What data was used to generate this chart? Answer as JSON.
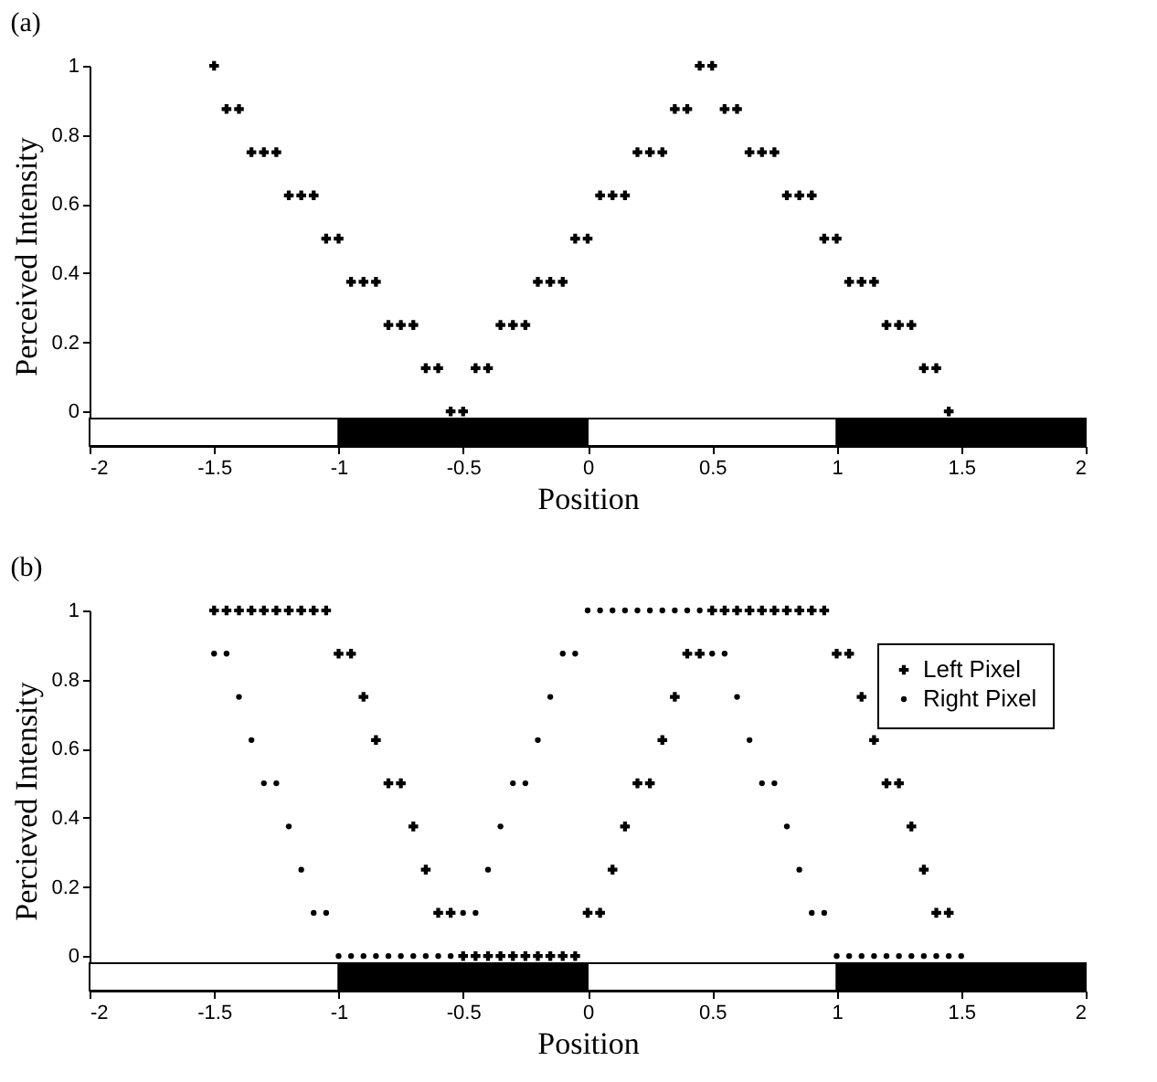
{
  "chart_data": [
    {
      "type": "scatter",
      "title": "(a)",
      "xlabel": "Position",
      "ylabel": "Perceived Intensity",
      "xlim": [
        -2,
        2
      ],
      "xticks": [
        -2,
        -1.5,
        -1,
        -0.5,
        0,
        0.5,
        1,
        1.5,
        2
      ],
      "ylim": [
        -0.1,
        1
      ],
      "yticks": [
        0,
        0.2,
        0.4,
        0.6,
        0.8,
        1
      ],
      "grid": false,
      "bands": [
        {
          "axis": "x",
          "from": -2,
          "to": -1,
          "color": "#ffffff"
        },
        {
          "axis": "x",
          "from": -1,
          "to": 0,
          "color": "#000000"
        },
        {
          "axis": "x",
          "from": 0,
          "to": 1,
          "color": "#ffffff"
        },
        {
          "axis": "x",
          "from": 1,
          "to": 2,
          "color": "#000000"
        }
      ],
      "series": [
        {
          "color": "#000000",
          "marker": "cross",
          "x": [
            -1.5,
            -1.45,
            -1.4,
            -1.35,
            -1.3,
            -1.25,
            -1.2,
            -1.15,
            -1.1,
            -1.05,
            -1.0,
            -0.95,
            -0.9,
            -0.85,
            -0.8,
            -0.75,
            -0.7,
            -0.65,
            -0.6,
            -0.55,
            -0.5,
            -0.45,
            -0.4,
            -0.35,
            -0.3,
            -0.25,
            -0.2,
            -0.15,
            -0.1,
            -0.05,
            0,
            0.05,
            0.1,
            0.15,
            0.2,
            0.25,
            0.3,
            0.35,
            0.4,
            0.45,
            0.5,
            0.55,
            0.6,
            0.65,
            0.7,
            0.75,
            0.8,
            0.85,
            0.9,
            0.95,
            1.0,
            1.05,
            1.1,
            1.15,
            1.2,
            1.25,
            1.3,
            1.35,
            1.4,
            1.45
          ],
          "values": [
            1,
            0.875,
            0.875,
            0.75,
            0.75,
            0.75,
            0.625,
            0.625,
            0.625,
            0.5,
            0.5,
            0.375,
            0.375,
            0.375,
            0.25,
            0.25,
            0.25,
            0.125,
            0.125,
            0,
            0,
            0.125,
            0.125,
            0.25,
            0.25,
            0.25,
            0.375,
            0.375,
            0.375,
            0.5,
            0.5,
            0.625,
            0.625,
            0.625,
            0.75,
            0.75,
            0.75,
            0.875,
            0.875,
            1,
            1,
            0.875,
            0.875,
            0.75,
            0.75,
            0.75,
            0.625,
            0.625,
            0.625,
            0.5,
            0.5,
            0.375,
            0.375,
            0.375,
            0.25,
            0.25,
            0.25,
            0.125,
            0.125,
            0
          ]
        }
      ]
    },
    {
      "type": "scatter",
      "title": "(b)",
      "xlabel": "Position",
      "ylabel": "Percieved Intensity",
      "xlim": [
        -2,
        2
      ],
      "xticks": [
        -2,
        -1.5,
        -1,
        -0.5,
        0,
        0.5,
        1,
        1.5,
        2
      ],
      "ylim": [
        -0.1,
        1
      ],
      "yticks": [
        0,
        0.2,
        0.4,
        0.6,
        0.8,
        1
      ],
      "grid": false,
      "legend": "top right",
      "bands": [
        {
          "axis": "x",
          "from": -2,
          "to": -1,
          "color": "#ffffff"
        },
        {
          "axis": "x",
          "from": -1,
          "to": 0,
          "color": "#000000"
        },
        {
          "axis": "x",
          "from": 0,
          "to": 1,
          "color": "#ffffff"
        },
        {
          "axis": "x",
          "from": 1,
          "to": 2,
          "color": "#000000"
        }
      ],
      "series": [
        {
          "name": "Left Pixel",
          "color": "#000000",
          "marker": "cross",
          "x": [
            -1.5,
            -1.45,
            -1.4,
            -1.35,
            -1.3,
            -1.25,
            -1.2,
            -1.15,
            -1.1,
            -1.05,
            -1.0,
            -0.95,
            -0.9,
            -0.85,
            -0.8,
            -0.75,
            -0.7,
            -0.65,
            -0.6,
            -0.55,
            -0.5,
            -0.45,
            -0.4,
            -0.35,
            -0.3,
            -0.25,
            -0.2,
            -0.15,
            -0.1,
            -0.05,
            0,
            0.05,
            0.1,
            0.15,
            0.2,
            0.25,
            0.3,
            0.35,
            0.4,
            0.45,
            0.5,
            0.55,
            0.6,
            0.65,
            0.7,
            0.75,
            0.8,
            0.85,
            0.9,
            0.95,
            1.0,
            1.05,
            1.1,
            1.15,
            1.2,
            1.25,
            1.3,
            1.35,
            1.4,
            1.45
          ],
          "values": [
            1,
            1,
            1,
            1,
            1,
            1,
            1,
            1,
            1,
            1,
            0.875,
            0.875,
            0.75,
            0.625,
            0.5,
            0.5,
            0.375,
            0.25,
            0.125,
            0.125,
            0,
            0,
            0,
            0,
            0,
            0,
            0,
            0,
            0,
            0,
            0.125,
            0.125,
            0.25,
            0.375,
            0.5,
            0.5,
            0.625,
            0.75,
            0.875,
            0.875,
            1,
            1,
            1,
            1,
            1,
            1,
            1,
            1,
            1,
            1,
            0.875,
            0.875,
            0.75,
            0.625,
            0.5,
            0.5,
            0.375,
            0.25,
            0.125,
            0.125
          ]
        },
        {
          "name": "Right Pixel",
          "color": "#000000",
          "marker": "circle",
          "x": [
            -1.5,
            -1.45,
            -1.4,
            -1.35,
            -1.3,
            -1.25,
            -1.2,
            -1.15,
            -1.1,
            -1.05,
            -1.0,
            -0.95,
            -0.9,
            -0.85,
            -0.8,
            -0.75,
            -0.7,
            -0.65,
            -0.6,
            -0.55,
            -0.5,
            -0.45,
            -0.4,
            -0.35,
            -0.3,
            -0.25,
            -0.2,
            -0.15,
            -0.1,
            -0.05,
            0,
            0.05,
            0.1,
            0.15,
            0.2,
            0.25,
            0.3,
            0.35,
            0.4,
            0.45,
            0.5,
            0.55,
            0.6,
            0.65,
            0.7,
            0.75,
            0.8,
            0.85,
            0.9,
            0.95,
            1.0,
            1.05,
            1.1,
            1.15,
            1.2,
            1.25,
            1.3,
            1.35,
            1.4,
            1.45,
            1.5
          ],
          "values": [
            0.875,
            0.875,
            0.75,
            0.625,
            0.5,
            0.5,
            0.375,
            0.25,
            0.125,
            0.125,
            0,
            0,
            0,
            0,
            0,
            0,
            0,
            0,
            0,
            0,
            0.125,
            0.125,
            0.25,
            0.375,
            0.5,
            0.5,
            0.625,
            0.75,
            0.875,
            0.875,
            1,
            1,
            1,
            1,
            1,
            1,
            1,
            1,
            1,
            1,
            0.875,
            0.875,
            0.75,
            0.625,
            0.5,
            0.5,
            0.375,
            0.25,
            0.125,
            0.125,
            0,
            0,
            0,
            0,
            0,
            0,
            0,
            0,
            0,
            0,
            0
          ]
        }
      ]
    }
  ]
}
